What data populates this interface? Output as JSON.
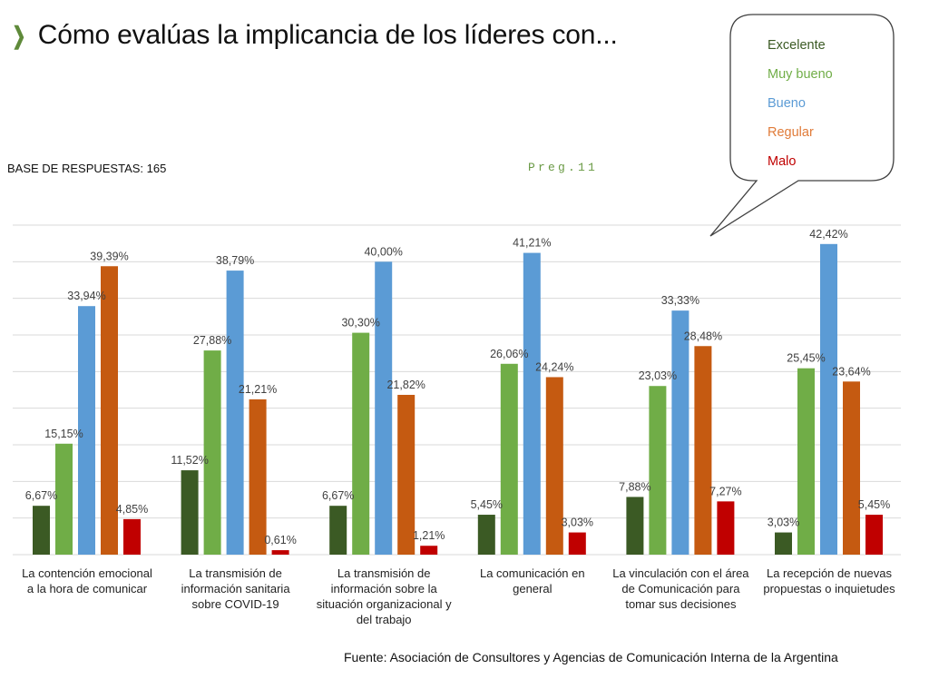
{
  "header": {
    "title": "Cómo evalúas la implicancia de los líderes con...",
    "base": "BASE DE RESPUESTAS: 165",
    "question": "Preg.11"
  },
  "footer": {
    "source": "Fuente: Asociación de Consultores y Agencias de Comunicación Interna de la Argentina"
  },
  "chart_data": {
    "type": "bar",
    "title": "Cómo evalúas la implicancia de los líderes con...",
    "xlabel": "",
    "ylabel": "",
    "ylim": [
      0,
      45
    ],
    "grid": true,
    "grid_step": 5,
    "legend_placement": "top-right",
    "categories": [
      "La contención emocional a la hora de comunicar",
      "La transmisión de información sanitaria sobre COVID-19",
      "La transmisión de información sobre la situación organizacional y del trabajo",
      "La comunicación en general",
      "La vinculación con el área de Comunicación para tomar sus decisiones",
      "La recepción de nuevas propuestas o inquietudes"
    ],
    "category_lines": [
      [
        "La contención emocional",
        "a la hora de comunicar"
      ],
      [
        "La transmisión de",
        "información sanitaria",
        "sobre COVID-19"
      ],
      [
        "La transmisión de",
        "información sobre la",
        "situación organizacional y",
        "del trabajo"
      ],
      [
        "La comunicación en",
        "general"
      ],
      [
        "La vinculación con el área",
        "de Comunicación para",
        "tomar sus decisiones"
      ],
      [
        "La recepción de nuevas",
        "propuestas o inquietudes"
      ]
    ],
    "series": [
      {
        "name": "Excelente",
        "color": "#3B5A24",
        "values": [
          6.67,
          11.52,
          6.67,
          5.45,
          7.88,
          3.03
        ],
        "labels": [
          "6,67%",
          "11,52%",
          "6,67%",
          "5,45%",
          "7,88%",
          "3,03%"
        ]
      },
      {
        "name": "Muy bueno",
        "color": "#70AD47",
        "values": [
          15.15,
          27.88,
          30.3,
          26.06,
          23.03,
          25.45
        ],
        "labels": [
          "15,15%",
          "27,88%",
          "30,30%",
          "26,06%",
          "23,03%",
          "25,45%"
        ]
      },
      {
        "name": "Bueno",
        "color": "#5B9BD5",
        "values": [
          33.94,
          38.79,
          40.0,
          41.21,
          33.33,
          42.42
        ],
        "labels": [
          "33,94%",
          "38,79%",
          "40,00%",
          "41,21%",
          "33,33%",
          "42,42%"
        ]
      },
      {
        "name": "Regular",
        "color": "#C55A11",
        "values": [
          39.39,
          21.21,
          21.82,
          24.24,
          28.48,
          23.64
        ],
        "labels": [
          "39,39%",
          "21,21%",
          "21,82%",
          "24,24%",
          "28,48%",
          "23,64%"
        ]
      },
      {
        "name": "Malo",
        "color": "#C00000",
        "values": [
          4.85,
          0.61,
          1.21,
          3.03,
          7.27,
          5.45
        ],
        "labels": [
          "4,85%",
          "0,61%",
          "1,21%",
          "3,03%",
          "7,27%",
          "5,45%"
        ]
      }
    ]
  }
}
